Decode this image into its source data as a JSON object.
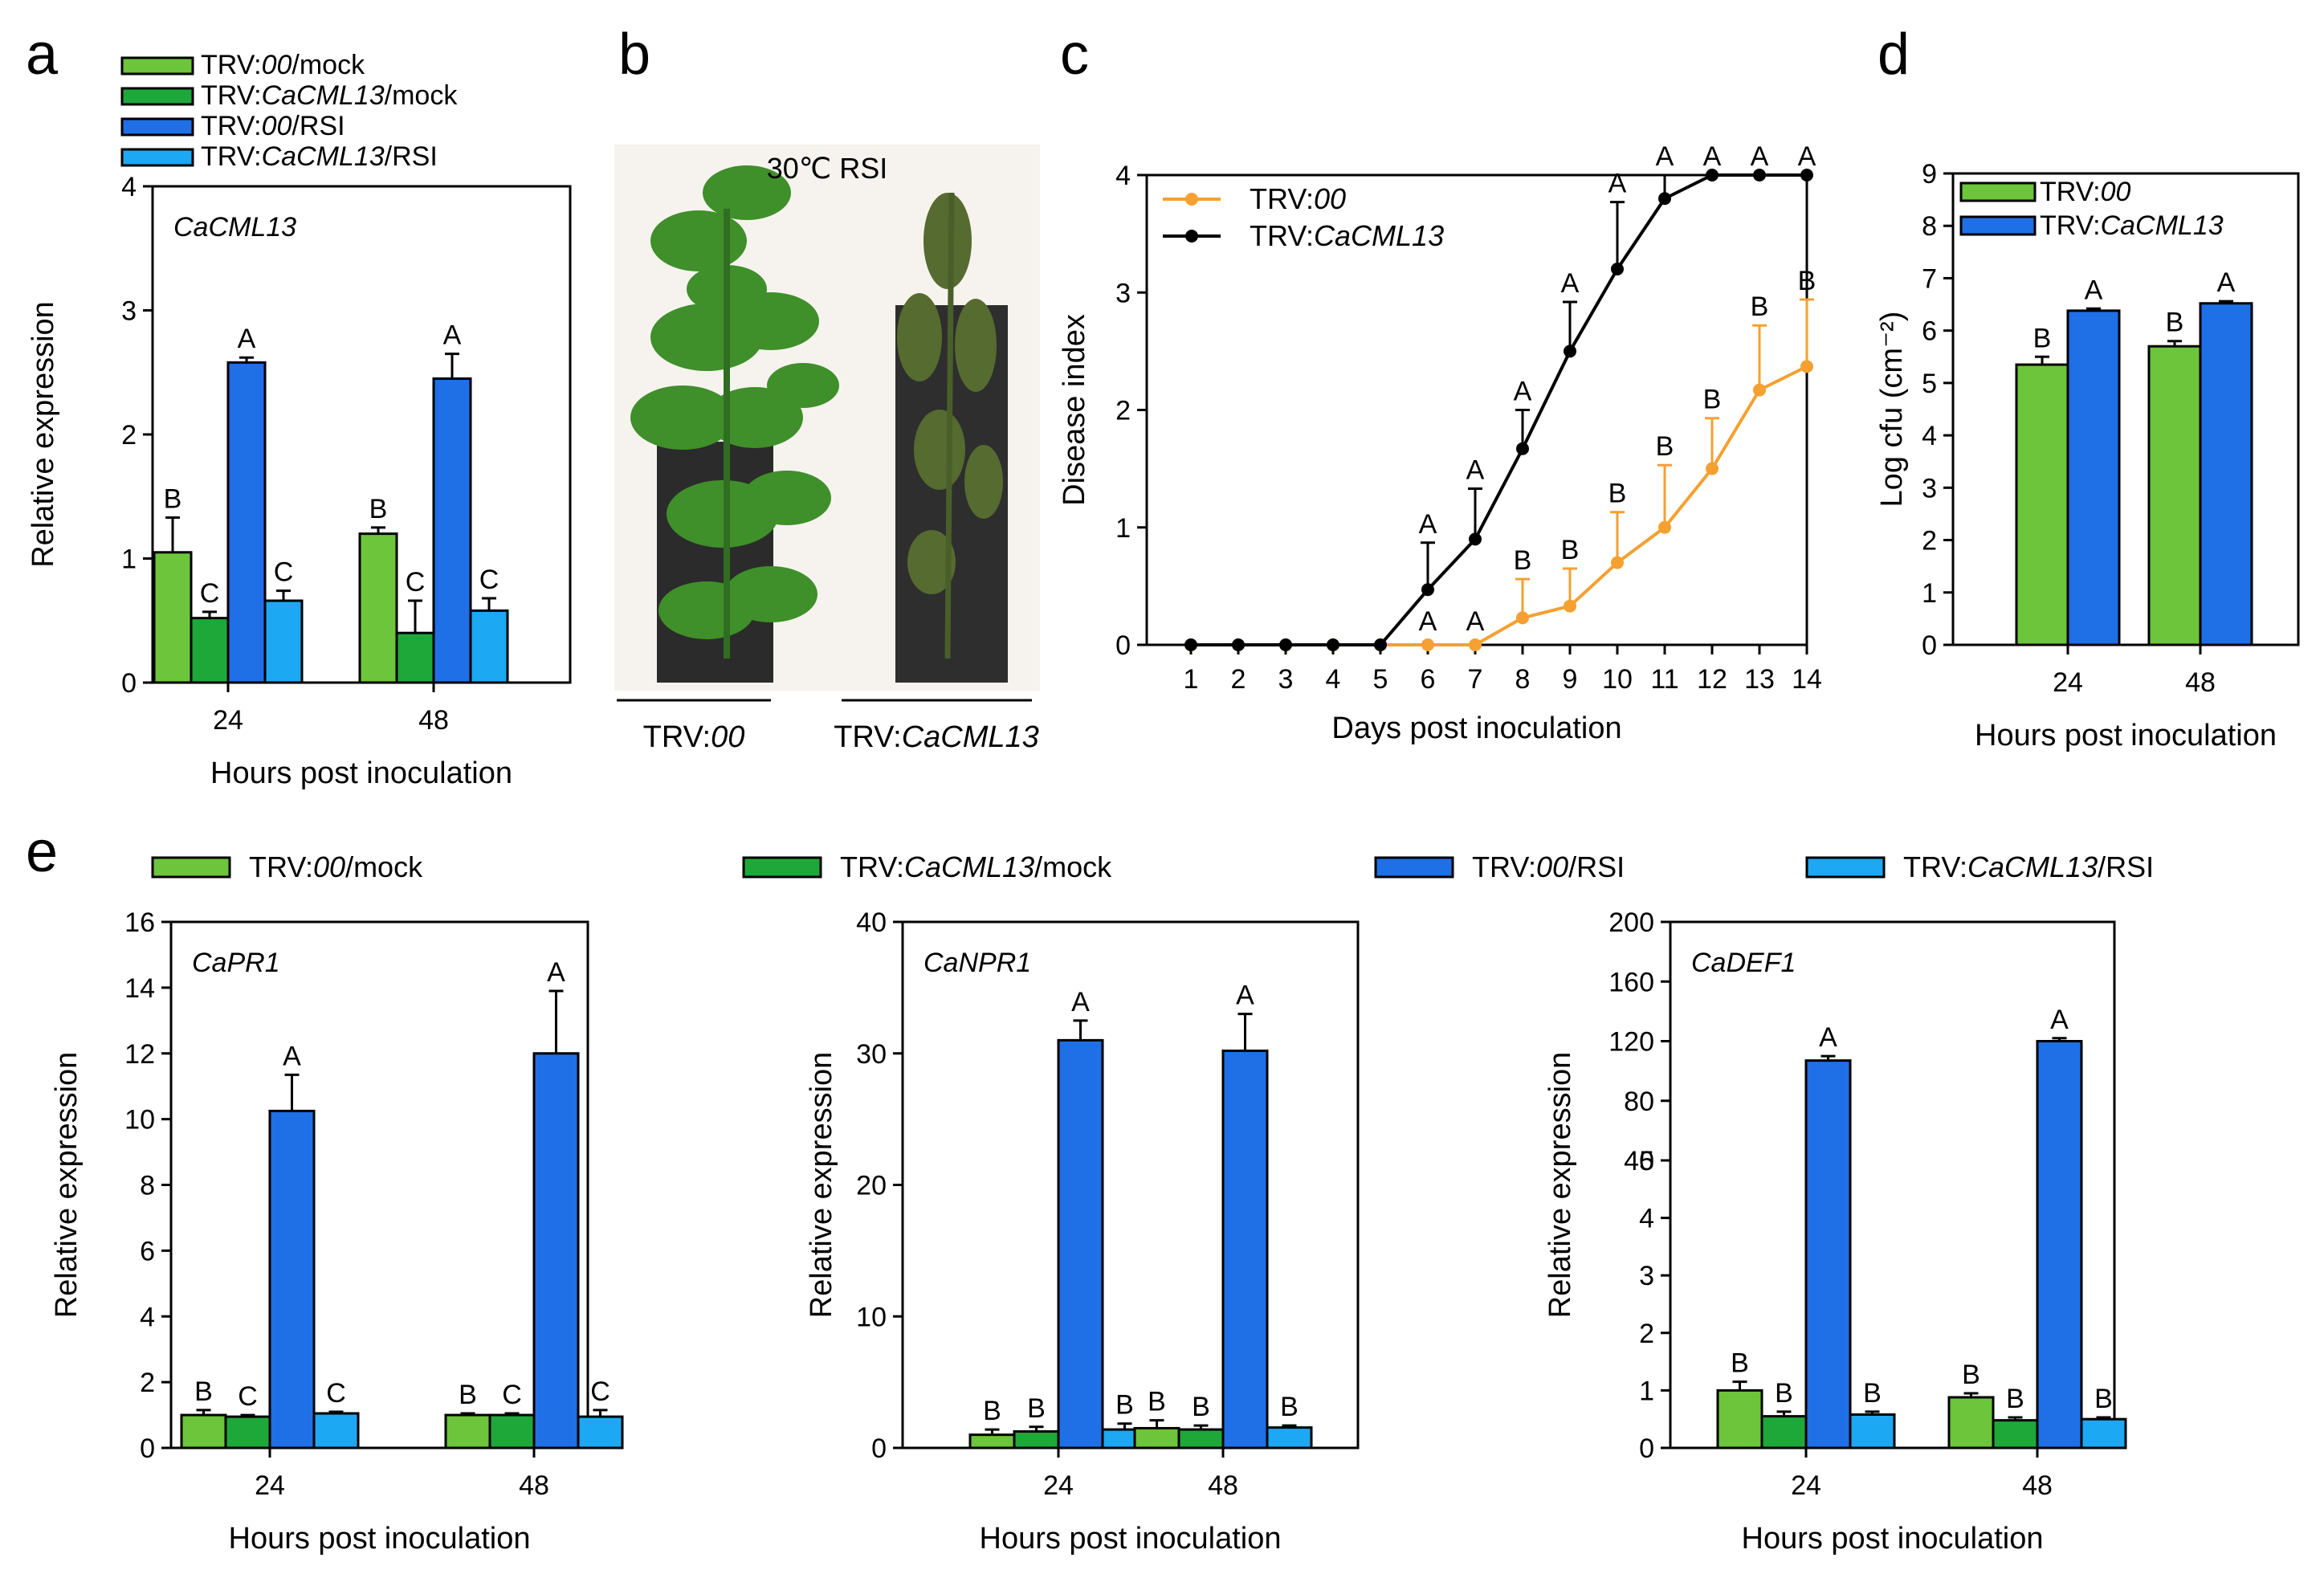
{
  "colors": {
    "light_green": "#6cc53a",
    "dark_green": "#1fa83a",
    "dark_blue": "#1f6fe6",
    "light_blue": "#1ca8f2",
    "orange": "#f5a030",
    "black": "#000000"
  },
  "panel_labels": {
    "a": "a",
    "b": "b",
    "c": "c",
    "d": "d",
    "e": "e"
  },
  "photo": {
    "caption": "30℃ RSI",
    "left_label_prefix": "TRV:",
    "left_label_italic": "00",
    "right_label_prefix": "TRV:",
    "right_label_italic": "CaCML13"
  },
  "chart_data": [
    {
      "id": "a",
      "type": "bar",
      "title": "CaCML13",
      "xlabel": "Hours post inoculation",
      "ylabel": "Relative expression",
      "ylim": [
        0,
        4
      ],
      "yticks": [
        "0",
        "1",
        "2",
        "3",
        "4"
      ],
      "categories": [
        "24",
        "48"
      ],
      "series": [
        {
          "name": "TRV:00/mock",
          "name_parts": [
            "TRV:",
            "00",
            "/mock"
          ],
          "color": "#6cc53a",
          "values": [
            1.05,
            1.2
          ],
          "errors": [
            0.28,
            0.05
          ],
          "letters": [
            "B",
            "B"
          ]
        },
        {
          "name": "TRV:CaCML13/mock",
          "name_parts": [
            "TRV:",
            "CaCML13",
            "/mock"
          ],
          "color": "#1fa83a",
          "values": [
            0.52,
            0.4
          ],
          "errors": [
            0.05,
            0.26
          ],
          "letters": [
            "C",
            "C"
          ]
        },
        {
          "name": "TRV:00/RSI",
          "name_parts": [
            "TRV:",
            "00",
            "/RSI"
          ],
          "color": "#1f6fe6",
          "values": [
            2.58,
            2.45
          ],
          "errors": [
            0.04,
            0.2
          ],
          "letters": [
            "A",
            "A"
          ]
        },
        {
          "name": "TRV:CaCML13/RSI",
          "name_parts": [
            "TRV:",
            "CaCML13",
            "/RSI"
          ],
          "color": "#1ca8f2",
          "values": [
            0.66,
            0.58
          ],
          "errors": [
            0.08,
            0.1
          ],
          "letters": [
            "C",
            "C"
          ]
        }
      ]
    },
    {
      "id": "c",
      "type": "line",
      "title": "",
      "xlabel": "Days post inoculation",
      "ylabel": "Disease index",
      "xlim": [
        0.5,
        14
      ],
      "ylim": [
        0,
        4
      ],
      "x": [
        1,
        2,
        3,
        4,
        5,
        6,
        7,
        8,
        9,
        10,
        11,
        12,
        13,
        14
      ],
      "yticks": [
        "0",
        "1",
        "2",
        "3",
        "4"
      ],
      "series": [
        {
          "name": "TRV:00",
          "name_parts": [
            "TRV:",
            "00",
            ""
          ],
          "color": "#f5a030",
          "values": [
            0,
            0,
            0,
            0,
            0,
            0,
            0,
            0.23,
            0.33,
            0.7,
            1.0,
            1.5,
            2.17,
            2.37
          ],
          "errors": [
            0,
            0,
            0,
            0,
            0,
            0,
            0,
            0.33,
            0.32,
            0.43,
            0.53,
            0.43,
            0.55,
            0.57
          ],
          "letters": [
            "",
            "",
            "",
            "",
            "",
            "A",
            "A",
            "B",
            "B",
            "B",
            "B",
            "B",
            "B",
            "B"
          ]
        },
        {
          "name": "TRV:CaCML13",
          "name_parts": [
            "TRV:",
            "CaCML13",
            ""
          ],
          "color": "#000000",
          "values": [
            0,
            0,
            0,
            0,
            0,
            0.47,
            0.9,
            1.67,
            2.5,
            3.2,
            3.8,
            4.0,
            4.0,
            4.0
          ],
          "errors": [
            0,
            0,
            0,
            0,
            0,
            0.4,
            0.43,
            0.33,
            0.42,
            0.57,
            0.2,
            0,
            0,
            0
          ],
          "letters": [
            "",
            "",
            "",
            "",
            "",
            "A",
            "A",
            "A",
            "A",
            "A",
            "A",
            "A",
            "A",
            "A"
          ]
        }
      ]
    },
    {
      "id": "d",
      "type": "bar",
      "title": "",
      "xlabel": "Hours post inoculation",
      "ylabel": "Log cfu (cm⁻²)",
      "ylim": [
        0,
        9
      ],
      "yticks": [
        "0",
        "1",
        "2",
        "3",
        "4",
        "5",
        "6",
        "7",
        "8",
        "9"
      ],
      "categories": [
        "24",
        "48"
      ],
      "series": [
        {
          "name": "TRV:00",
          "name_parts": [
            "TRV:",
            "00",
            ""
          ],
          "color": "#6cc53a",
          "values": [
            5.35,
            5.7
          ],
          "errors": [
            0.15,
            0.1
          ],
          "letters": [
            "B",
            "B"
          ]
        },
        {
          "name": "TRV:CaCML13",
          "name_parts": [
            "TRV:",
            "CaCML13",
            ""
          ],
          "color": "#1f6fe6",
          "values": [
            6.38,
            6.52
          ],
          "errors": [
            0.04,
            0.04
          ],
          "letters": [
            "A",
            "A"
          ]
        }
      ]
    },
    {
      "id": "e1",
      "type": "bar",
      "title": "CaPR1",
      "xlabel": "Hours post inoculation",
      "ylabel": "Relative expression",
      "ylim": [
        0,
        16
      ],
      "yticks": [
        "0",
        "2",
        "4",
        "6",
        "8",
        "10",
        "12",
        "14",
        "16"
      ],
      "categories": [
        "24",
        "48"
      ],
      "series": [
        {
          "name": "TRV:00/mock",
          "color": "#6cc53a",
          "values": [
            1.0,
            1.0
          ],
          "errors": [
            0.15,
            0.05
          ],
          "letters": [
            "B",
            "B"
          ]
        },
        {
          "name": "TRV:CaCML13/mock",
          "color": "#1fa83a",
          "values": [
            0.95,
            1.0
          ],
          "errors": [
            0.05,
            0.05
          ],
          "letters": [
            "C",
            "C"
          ]
        },
        {
          "name": "TRV:00/RSI",
          "color": "#1f6fe6",
          "values": [
            10.25,
            12.0
          ],
          "errors": [
            1.1,
            1.9
          ],
          "letters": [
            "A",
            "A"
          ]
        },
        {
          "name": "TRV:CaCML13/RSI",
          "color": "#1ca8f2",
          "values": [
            1.05,
            0.95
          ],
          "errors": [
            0.05,
            0.2
          ],
          "letters": [
            "C",
            "C"
          ]
        }
      ]
    },
    {
      "id": "e2",
      "type": "bar",
      "title": "CaNPR1",
      "xlabel": "Hours post inoculation",
      "ylabel": "Relative expression",
      "ylim": [
        0,
        40
      ],
      "yticks": [
        "0",
        "10",
        "20",
        "30",
        "40"
      ],
      "categories": [
        "24",
        "48"
      ],
      "series": [
        {
          "name": "TRV:00/mock",
          "color": "#6cc53a",
          "values": [
            1.0,
            1.5
          ],
          "errors": [
            0.4,
            0.6
          ],
          "letters": [
            "B",
            "B"
          ]
        },
        {
          "name": "TRV:CaCML13/mock",
          "color": "#1fa83a",
          "values": [
            1.25,
            1.4
          ],
          "errors": [
            0.35,
            0.3
          ],
          "letters": [
            "B",
            "B"
          ]
        },
        {
          "name": "TRV:00/RSI",
          "color": "#1f6fe6",
          "values": [
            31.0,
            30.2
          ],
          "errors": [
            1.5,
            2.8
          ],
          "letters": [
            "A",
            "A"
          ]
        },
        {
          "name": "TRV:CaCML13/RSI",
          "color": "#1ca8f2",
          "values": [
            1.4,
            1.55
          ],
          "errors": [
            0.45,
            0.15
          ],
          "letters": [
            "B",
            "B"
          ]
        }
      ]
    },
    {
      "id": "e3",
      "type": "bar",
      "title": "CaDEF1",
      "xlabel": "Hours post inoculation",
      "ylabel": "Relative expression",
      "axis_break": "broken y-axis: lower segment 0-5, upper segment 40-200",
      "ylim": [
        0,
        200
      ],
      "yticks": [
        "0",
        "1",
        "2",
        "3",
        "4",
        "5",
        "40",
        "80",
        "120",
        "160",
        "200"
      ],
      "categories": [
        "24",
        "48"
      ],
      "series": [
        {
          "name": "TRV:00/mock",
          "color": "#6cc53a",
          "values": [
            1.0,
            0.88
          ],
          "errors": [
            0.15,
            0.07
          ],
          "letters": [
            "B",
            "B"
          ]
        },
        {
          "name": "TRV:CaCML13/mock",
          "color": "#1fa83a",
          "values": [
            0.55,
            0.48
          ],
          "errors": [
            0.08,
            0.05
          ],
          "letters": [
            "B",
            "B"
          ]
        },
        {
          "name": "TRV:00/RSI",
          "color": "#1f6fe6",
          "values": [
            107,
            120
          ],
          "errors": [
            3,
            2
          ],
          "letters": [
            "A",
            "A"
          ]
        },
        {
          "name": "TRV:CaCML13/RSI",
          "color": "#1ca8f2",
          "values": [
            0.58,
            0.5
          ],
          "errors": [
            0.05,
            0.03
          ],
          "letters": [
            "B",
            "B"
          ]
        }
      ]
    }
  ],
  "legend_e": [
    {
      "name_parts": [
        "TRV:",
        "00",
        "/mock"
      ],
      "color": "#6cc53a"
    },
    {
      "name_parts": [
        "TRV:",
        "CaCML13",
        "/mock"
      ],
      "color": "#1fa83a"
    },
    {
      "name_parts": [
        "TRV:",
        "00",
        "/RSI"
      ],
      "color": "#1f6fe6"
    },
    {
      "name_parts": [
        "TRV:",
        "CaCML13",
        "/RSI"
      ],
      "color": "#1ca8f2"
    }
  ]
}
